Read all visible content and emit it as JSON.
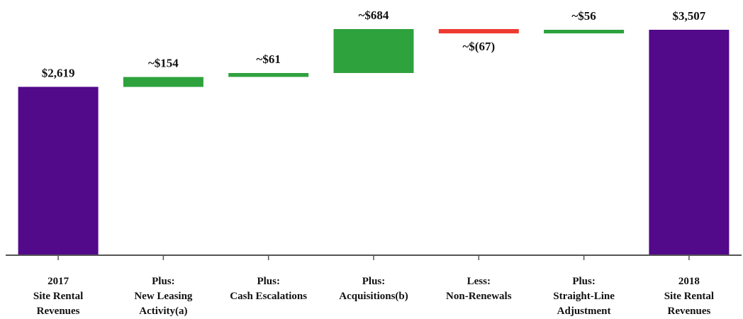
{
  "chart_data": {
    "type": "bar",
    "subtype": "waterfall",
    "categories": [
      [
        "2017",
        "Site Rental",
        "Revenues"
      ],
      [
        "Plus:",
        "New Leasing",
        "Activity(a)"
      ],
      [
        "Plus:",
        "Cash Escalations"
      ],
      [
        "Plus:",
        "Acquisitions(b)"
      ],
      [
        "Less:",
        "Non-Renewals"
      ],
      [
        "Plus:",
        "Straight-Line",
        "Adjustment"
      ],
      [
        "2018",
        "Site Rental",
        "Revenues"
      ]
    ],
    "bars": [
      {
        "kind": "total",
        "value": 2619,
        "label": "$2,619",
        "color": "#52098a"
      },
      {
        "kind": "increase",
        "value": 154,
        "label": "~$154",
        "color": "#2ea23d"
      },
      {
        "kind": "increase",
        "value": 61,
        "label": "~$61",
        "color": "#2ea23d"
      },
      {
        "kind": "increase",
        "value": 684,
        "label": "~$684",
        "color": "#2ea23d"
      },
      {
        "kind": "decrease",
        "value": -67,
        "label": "~$(67)",
        "color": "#ee3a30"
      },
      {
        "kind": "increase",
        "value": 56,
        "label": "~$56",
        "color": "#2ea23d"
      },
      {
        "kind": "total",
        "value": 3507,
        "label": "$3,507",
        "color": "#52098a"
      }
    ],
    "ylim": [
      0,
      3507
    ],
    "grid": false,
    "legend": "none"
  }
}
